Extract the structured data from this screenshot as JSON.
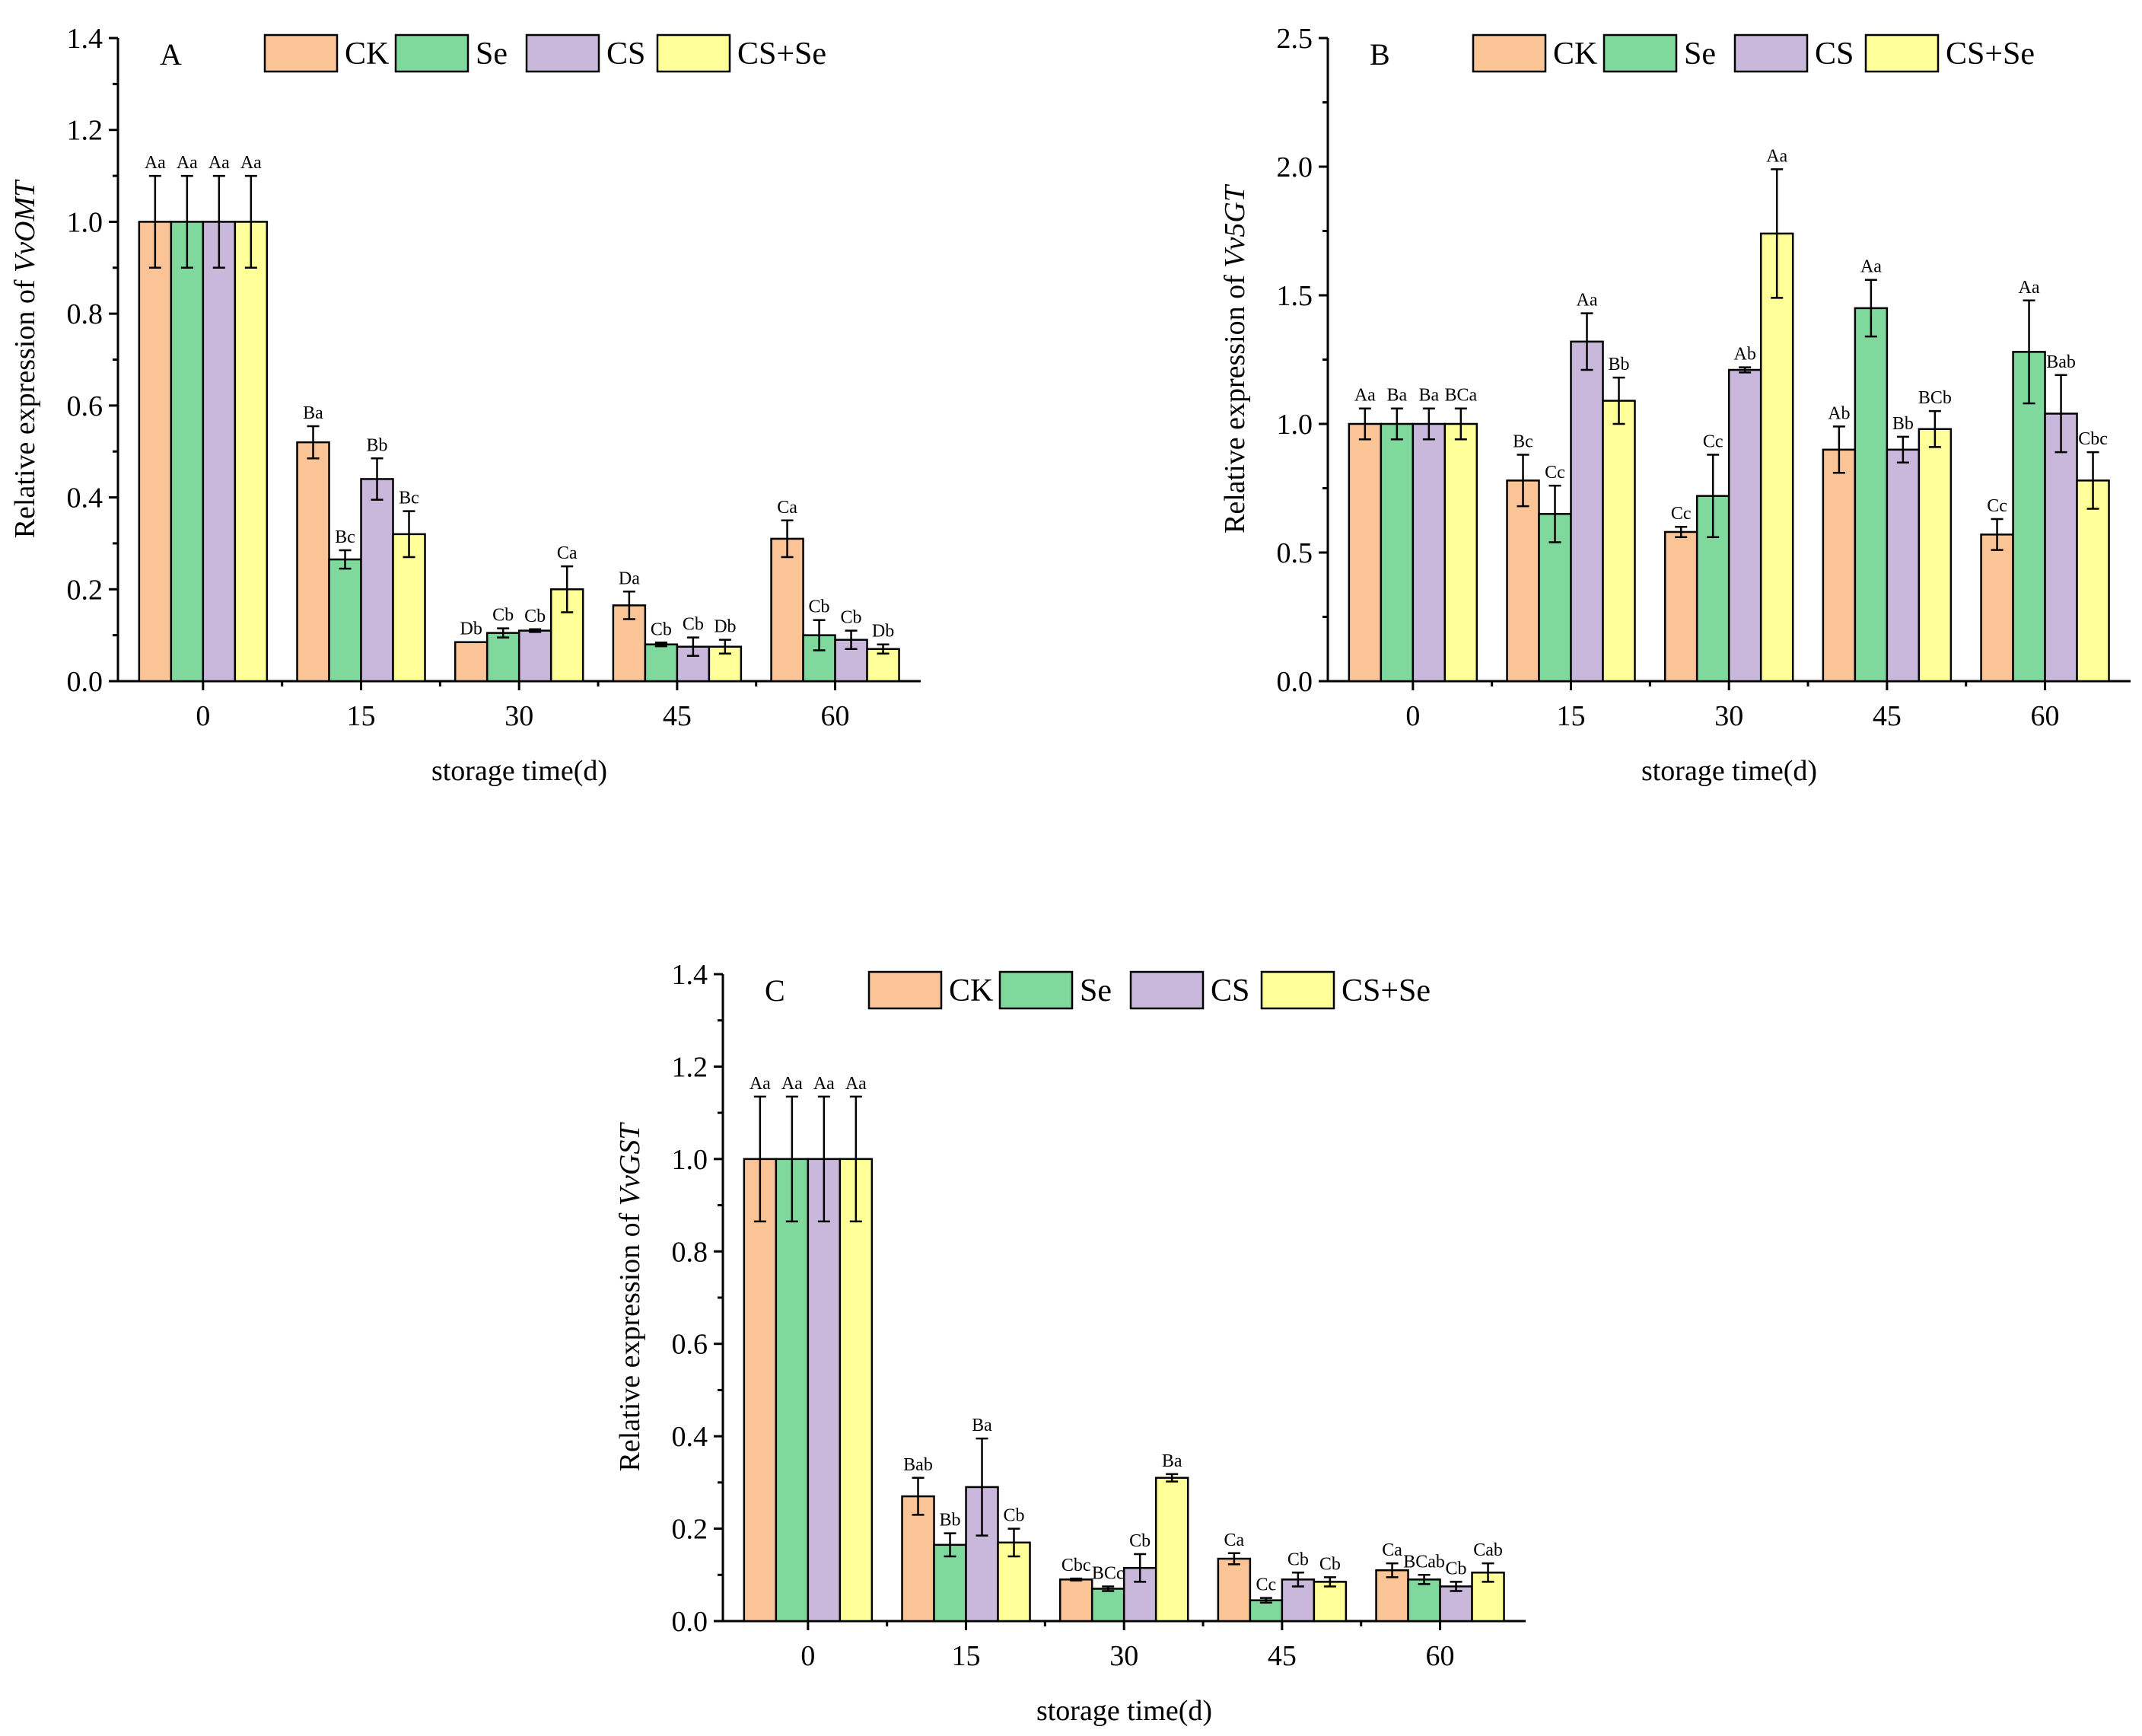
{
  "colors": {
    "CK": "#fbc497",
    "Se": "#7fd89c",
    "CS": "#c9b8dc",
    "CS+Se": "#ffff99"
  },
  "legend": [
    "CK",
    "Se",
    "CS",
    "CS+Se"
  ],
  "chart_data": [
    {
      "type": "bar",
      "panel_label": "A",
      "ylabel_prefix": "Relative expression of ",
      "ylabel_gene": "VvOMT",
      "xlabel": "storage time(d)",
      "categories": [
        "0",
        "15",
        "30",
        "45",
        "60"
      ],
      "ylim": [
        0,
        1.4
      ],
      "yticks": [
        "0.0",
        "0.2",
        "0.4",
        "0.6",
        "0.8",
        "1.0",
        "1.2",
        "1.4"
      ],
      "series": [
        {
          "name": "CK",
          "values": [
            1.0,
            0.52,
            0.085,
            0.165,
            0.31
          ],
          "errors": [
            0.1,
            0.035,
            0.0,
            0.03,
            0.04
          ],
          "labels": [
            "Aa",
            "Ba",
            "Db",
            "Da",
            "Ca"
          ]
        },
        {
          "name": "Se",
          "values": [
            1.0,
            0.265,
            0.105,
            0.08,
            0.1
          ],
          "errors": [
            0.1,
            0.02,
            0.01,
            0.004,
            0.033
          ],
          "labels": [
            "Aa",
            "Bc",
            "Cb",
            "Cb",
            "Cb"
          ]
        },
        {
          "name": "CS",
          "values": [
            1.0,
            0.44,
            0.11,
            0.075,
            0.09
          ],
          "errors": [
            0.1,
            0.045,
            0.003,
            0.02,
            0.02
          ],
          "labels": [
            "Aa",
            "Bb",
            "Cb",
            "Cb",
            "Cb"
          ]
        },
        {
          "name": "CS+Se",
          "values": [
            1.0,
            0.32,
            0.2,
            0.075,
            0.07
          ],
          "errors": [
            0.1,
            0.05,
            0.05,
            0.015,
            0.01
          ],
          "labels": [
            "Aa",
            "Bc",
            "Ca",
            "Db",
            "Db"
          ]
        }
      ]
    },
    {
      "type": "bar",
      "panel_label": "B",
      "ylabel_prefix": "Relative expression of ",
      "ylabel_gene": "Vv5GT",
      "xlabel": "storage time(d)",
      "categories": [
        "0",
        "15",
        "30",
        "45",
        "60"
      ],
      "ylim": [
        0,
        2.5
      ],
      "yticks": [
        "0.0",
        "0.5",
        "1.0",
        "1.5",
        "2.0",
        "2.5"
      ],
      "series": [
        {
          "name": "CK",
          "values": [
            1.0,
            0.78,
            0.58,
            0.9,
            0.57
          ],
          "errors": [
            0.06,
            0.1,
            0.02,
            0.09,
            0.06
          ],
          "labels": [
            "Aa",
            "Bc",
            "Cc",
            "Ab",
            "Cc"
          ]
        },
        {
          "name": "Se",
          "values": [
            1.0,
            0.65,
            0.72,
            1.45,
            1.28
          ],
          "errors": [
            0.06,
            0.11,
            0.16,
            0.11,
            0.2
          ],
          "labels": [
            "Ba",
            "Cc",
            "Cc",
            "Aa",
            "Aa"
          ]
        },
        {
          "name": "CS",
          "values": [
            1.0,
            1.32,
            1.21,
            0.9,
            1.04
          ],
          "errors": [
            0.06,
            0.11,
            0.01,
            0.05,
            0.15
          ],
          "labels": [
            "Ba",
            "Aa",
            "Ab",
            "Bb",
            "Bab"
          ]
        },
        {
          "name": "CS+Se",
          "values": [
            1.0,
            1.09,
            1.74,
            0.98,
            0.78
          ],
          "errors": [
            0.06,
            0.09,
            0.25,
            0.07,
            0.11
          ],
          "labels": [
            "BCa",
            "Bb",
            "Aa",
            "BCb",
            "Cbc"
          ]
        }
      ]
    },
    {
      "type": "bar",
      "panel_label": "C",
      "ylabel_prefix": "Relative expression of ",
      "ylabel_gene": "VvGST",
      "xlabel": "storage time(d)",
      "categories": [
        "0",
        "15",
        "30",
        "45",
        "60"
      ],
      "ylim": [
        0,
        1.4
      ],
      "yticks": [
        "0.0",
        "0.2",
        "0.4",
        "0.6",
        "0.8",
        "1.0",
        "1.2",
        "1.4"
      ],
      "series": [
        {
          "name": "CK",
          "values": [
            1.0,
            0.27,
            0.09,
            0.135,
            0.11
          ],
          "errors": [
            0.135,
            0.04,
            0.002,
            0.012,
            0.015
          ],
          "labels": [
            "Aa",
            "Bab",
            "Cbc",
            "Ca",
            "Ca"
          ]
        },
        {
          "name": "Se",
          "values": [
            1.0,
            0.165,
            0.07,
            0.045,
            0.09
          ],
          "errors": [
            0.135,
            0.025,
            0.005,
            0.005,
            0.01
          ],
          "labels": [
            "Aa",
            "Bb",
            "BCc",
            "Cc",
            "BCab"
          ]
        },
        {
          "name": "CS",
          "values": [
            1.0,
            0.29,
            0.115,
            0.09,
            0.075
          ],
          "errors": [
            0.135,
            0.105,
            0.03,
            0.015,
            0.01
          ],
          "labels": [
            "Aa",
            "Ba",
            "Cb",
            "Cb",
            "Cb"
          ]
        },
        {
          "name": "CS+Se",
          "values": [
            1.0,
            0.17,
            0.31,
            0.085,
            0.105
          ],
          "errors": [
            0.135,
            0.03,
            0.008,
            0.01,
            0.02
          ],
          "labels": [
            "Aa",
            "Cb",
            "Ba",
            "Cb",
            "Cab"
          ]
        }
      ]
    }
  ]
}
